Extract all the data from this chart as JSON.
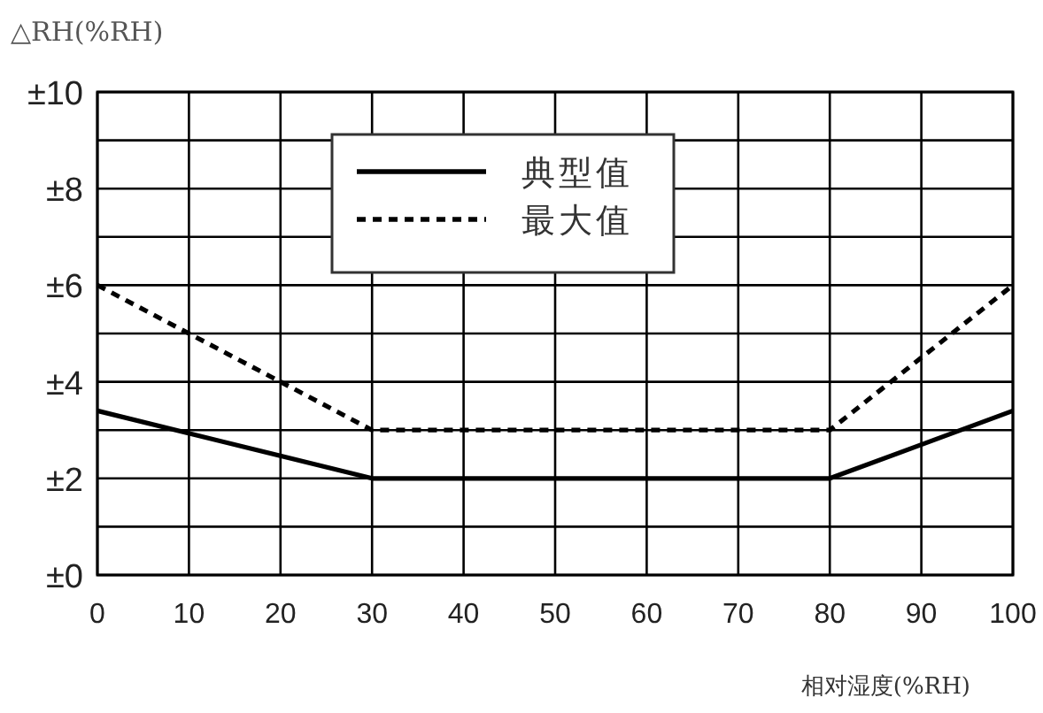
{
  "chart_data": {
    "type": "line",
    "ylabel": "△RH(%RH)",
    "xlabel": "相对湿度(%RH)",
    "x": [
      0,
      30,
      80,
      100
    ],
    "series": [
      {
        "name": "典型值",
        "color": "#000000",
        "line_style": "solid",
        "values": [
          3.4,
          2,
          2,
          3.4
        ]
      },
      {
        "name": "最大值",
        "color": "#000000",
        "line_style": "dashed",
        "values": [
          6,
          3,
          3,
          6
        ]
      }
    ],
    "xlim": [
      0,
      100
    ],
    "xticks": [
      0,
      10,
      20,
      30,
      40,
      50,
      60,
      70,
      80,
      90,
      100
    ],
    "ylim": [
      0,
      10
    ],
    "yticks": [
      {
        "value": 0,
        "label": "±0"
      },
      {
        "value": 1,
        "label": null
      },
      {
        "value": 2,
        "label": "±2"
      },
      {
        "value": 3,
        "label": null
      },
      {
        "value": 4,
        "label": "±4"
      },
      {
        "value": 5,
        "label": null
      },
      {
        "value": 6,
        "label": "±6"
      },
      {
        "value": 7,
        "label": null
      },
      {
        "value": 8,
        "label": "±8"
      },
      {
        "value": 9,
        "label": null
      },
      {
        "value": 10,
        "label": "±10"
      }
    ],
    "grid": true,
    "legend": "top",
    "marker": "none"
  }
}
